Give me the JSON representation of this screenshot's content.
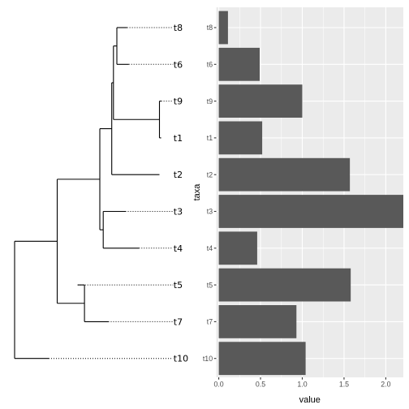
{
  "chart_data": [
    {
      "type": "tree",
      "tips": [
        {
          "label": "t8",
          "branch_end": 0.66,
          "dotted": true
        },
        {
          "label": "t6",
          "branch_end": 0.67,
          "dotted": true
        },
        {
          "label": "t9",
          "branch_end": 0.86,
          "dotted": true
        },
        {
          "label": "t1",
          "branch_end": 0.86,
          "dotted": false
        },
        {
          "label": "t2",
          "branch_end": 0.85,
          "dotted": false
        },
        {
          "label": "t3",
          "branch_end": 0.65,
          "dotted": true
        },
        {
          "label": "t4",
          "branch_end": 0.73,
          "dotted": true
        },
        {
          "label": "t5",
          "branch_end": 0.37,
          "dotted": true
        },
        {
          "label": "t7",
          "branch_end": 0.55,
          "dotted": true
        },
        {
          "label": "t10",
          "branch_end": 0.2,
          "dotted": true
        }
      ],
      "tip_extent": 0.93,
      "nodes": [
        {
          "x": 0.0,
          "children": [
            "n_a",
            "t10"
          ],
          "id": "root"
        },
        {
          "x": 0.25,
          "children": [
            "n_b",
            "n_c"
          ],
          "id": "n_a"
        },
        {
          "x": 0.41,
          "children": [
            "t5",
            "t7"
          ],
          "id": "n_c"
        },
        {
          "x": 0.5,
          "children": [
            "n_d",
            "n_e"
          ],
          "id": "n_b"
        },
        {
          "x": 0.52,
          "children": [
            "t3",
            "t4"
          ],
          "id": "n_e"
        },
        {
          "x": 0.57,
          "children": [
            "n_f",
            "t2"
          ],
          "id": "n_d"
        },
        {
          "x": 0.58,
          "children": [
            "n_g",
            "n_h"
          ],
          "id": "n_f"
        },
        {
          "x": 0.6,
          "children": [
            "t8",
            "t6"
          ],
          "id": "n_g"
        },
        {
          "x": 0.85,
          "children": [
            "t9",
            "t1"
          ],
          "id": "n_h"
        }
      ]
    },
    {
      "type": "bar",
      "orientation": "horizontal",
      "categories": [
        "t8",
        "t6",
        "t9",
        "t1",
        "t2",
        "t3",
        "t4",
        "t5",
        "t7",
        "t10"
      ],
      "values": [
        0.11,
        0.49,
        1.0,
        0.52,
        1.57,
        2.24,
        0.46,
        1.58,
        0.93,
        1.04
      ],
      "xlabel": "value",
      "ylabel": "taxa",
      "xticks": [
        "0.0",
        "0.5",
        "1.0",
        "1.5",
        "2.0"
      ],
      "xlim": [
        -0.03,
        2.21
      ],
      "bar_color": "#595959",
      "panel_color": "#ebebeb",
      "grid_color": "#ffffff",
      "grid": true
    }
  ]
}
